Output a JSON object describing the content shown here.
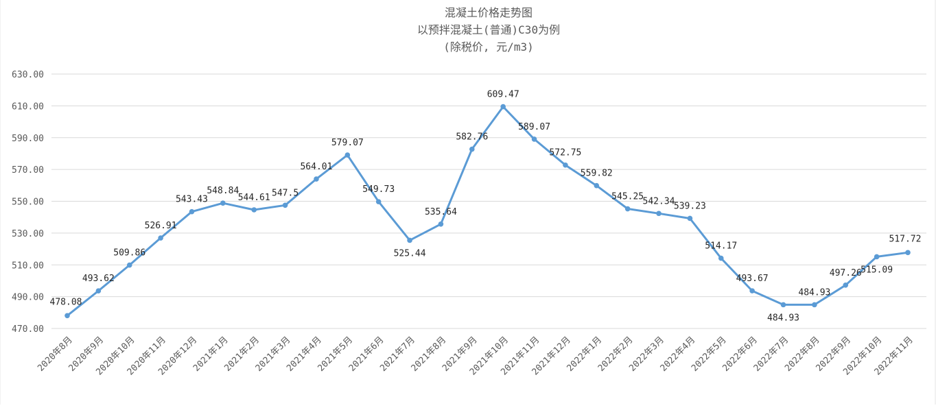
{
  "chart_data": {
    "type": "line",
    "title": [
      "混凝土价格走势图",
      "以预拌混凝土(普通)C30为例",
      "(除税价, 元/m3)"
    ],
    "categories": [
      "2020年8月",
      "2020年9月",
      "2020年10月",
      "2020年11月",
      "2020年12月",
      "2021年1月",
      "2021年2月",
      "2021年3月",
      "2021年4月",
      "2021年5月",
      "2021年6月",
      "2021年7月",
      "2021年8月",
      "2021年9月",
      "2021年10月",
      "2021年11月",
      "2021年12月",
      "2022年1月",
      "2022年2月",
      "2022年3月",
      "2022年4月",
      "2022年5月",
      "2022年6月",
      "2022年7月",
      "2022年8月",
      "2022年9月",
      "2022年10月",
      "2022年11月"
    ],
    "series": [
      {
        "values": [
          478.08,
          493.62,
          509.86,
          526.91,
          543.43,
          548.84,
          544.61,
          547.5,
          564.01,
          579.07,
          549.73,
          525.44,
          535.64,
          582.76,
          609.47,
          589.07,
          572.75,
          559.82,
          545.25,
          542.34,
          539.23,
          514.17,
          493.67,
          484.93,
          484.93,
          497.26,
          515.09,
          517.72
        ],
        "labels": [
          "478.08",
          "493.62",
          "509.86",
          "526.91",
          "543.43",
          "548.84",
          "544.61",
          "547.5",
          "564.01",
          "579.07",
          "549.73",
          "525.44",
          "535.64",
          "582.76",
          "609.47",
          "589.07",
          "572.75",
          "559.82",
          "545.25",
          "542.34",
          "539.23",
          "514.17",
          "493.67",
          "484.93",
          "484.93",
          "497.26",
          "515.09",
          "517.72"
        ],
        "color": "#5b9bd5"
      }
    ],
    "yticks": [
      "470.00",
      "490.00",
      "510.00",
      "530.00",
      "550.00",
      "570.00",
      "590.00",
      "610.00",
      "630.00"
    ],
    "ylim": [
      470,
      630
    ],
    "grid": true,
    "legend": "none"
  }
}
